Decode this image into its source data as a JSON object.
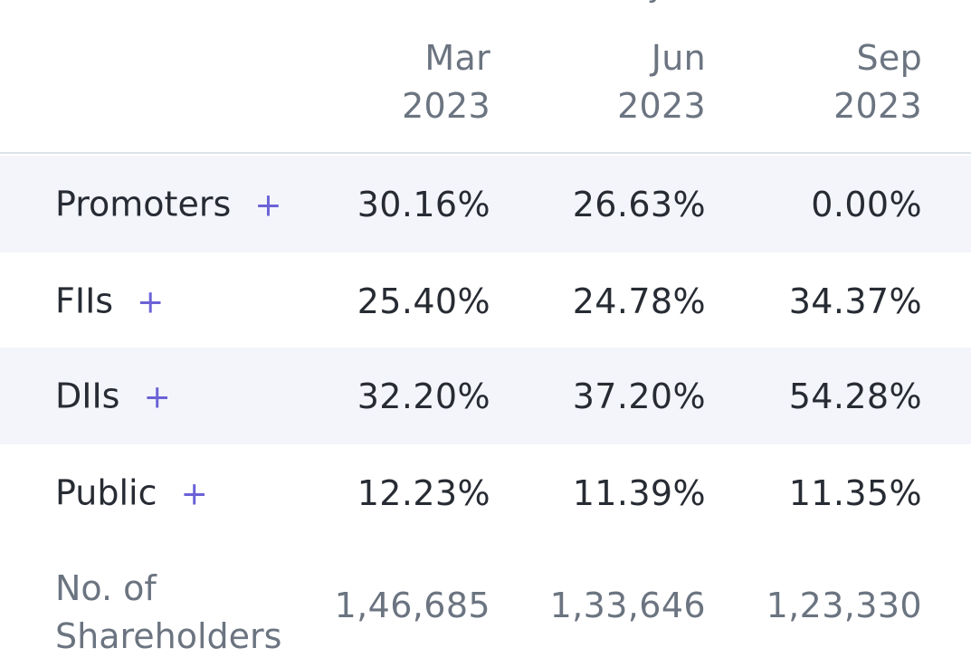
{
  "top_fragment": "y",
  "table": {
    "headers": [
      {
        "month": "Mar",
        "year": "2023"
      },
      {
        "month": "Jun",
        "year": "2023"
      },
      {
        "month": "Sep",
        "year": "2023"
      }
    ],
    "rows": [
      {
        "label": "Promoters",
        "expand": "+",
        "values": [
          "30.16%",
          "26.63%",
          "0.00%"
        ]
      },
      {
        "label": "FIIs",
        "expand": "+",
        "values": [
          "25.40%",
          "24.78%",
          "34.37%"
        ]
      },
      {
        "label": "DIIs",
        "expand": "+",
        "values": [
          "32.20%",
          "37.20%",
          "54.28%"
        ]
      },
      {
        "label": "Public",
        "expand": "+",
        "values": [
          "12.23%",
          "11.39%",
          "11.35%"
        ]
      }
    ],
    "shareholders": {
      "label_line1": "No. of",
      "label_line2": "Shareholders",
      "values": [
        "1,46,685",
        "1,33,646",
        "1,23,330"
      ]
    }
  },
  "colors": {
    "text_primary": "#272b33",
    "text_secondary": "#6b7480",
    "accent": "#6b62d6",
    "striped_row": "#f4f5fb",
    "divider": "#dde2eb"
  }
}
